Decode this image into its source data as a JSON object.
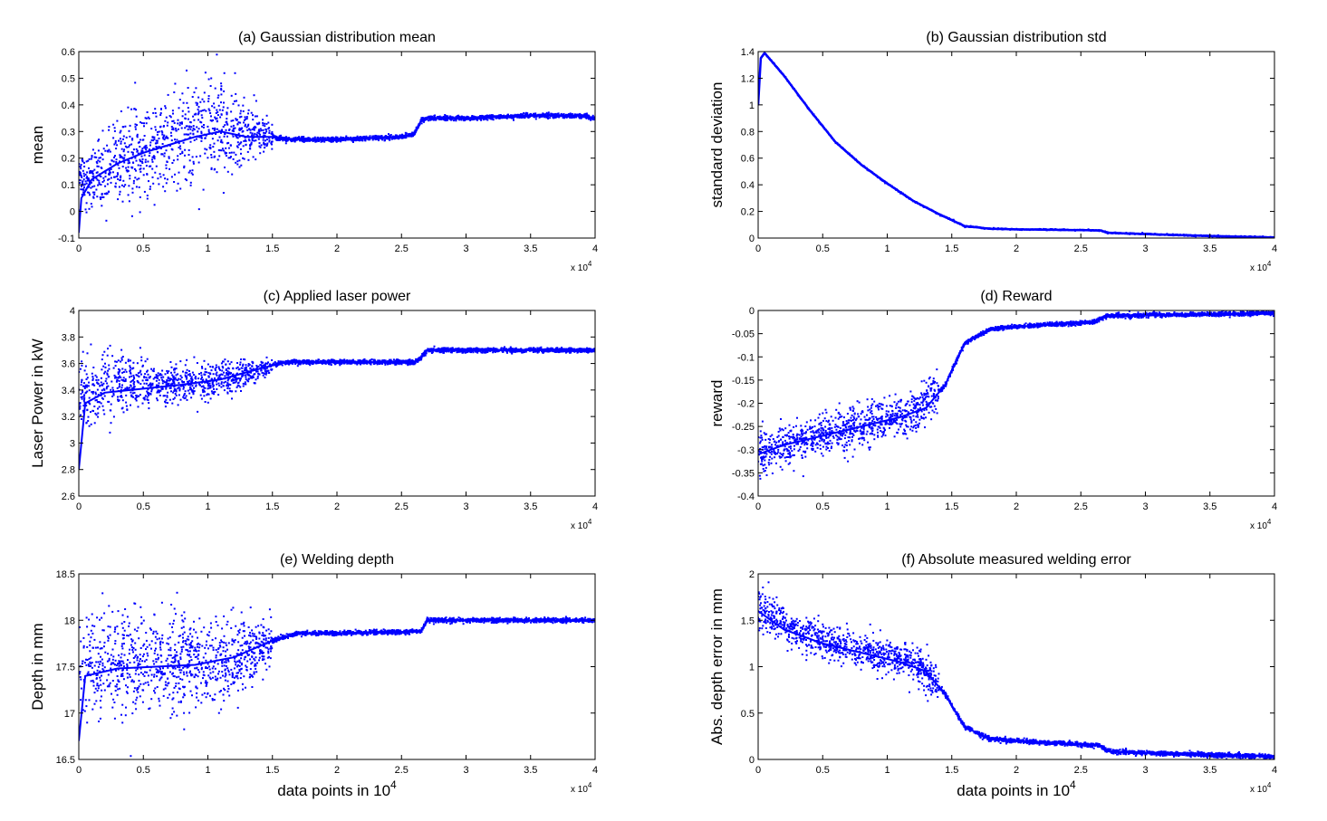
{
  "chart_data": [
    {
      "type": "scatter",
      "title": "(a) Gaussian distribution mean",
      "xlabel": "",
      "ylabel": "mean",
      "xlim": [
        0,
        4
      ],
      "ylim": [
        -0.1,
        0.6
      ],
      "x_ticks": [
        "0",
        "0.5",
        "1",
        "1.5",
        "2",
        "2.5",
        "3",
        "3.5",
        "4"
      ],
      "y_ticks": [
        "-0.1",
        "0",
        "0.1",
        "0.2",
        "0.3",
        "0.4",
        "0.5",
        "0.6"
      ],
      "x_multiplier": "x 10",
      "x_multiplier_exp": "4",
      "color": "#0000ff",
      "series": [
        {
          "x": [
            0,
            0.02,
            0.1,
            0.2,
            0.3,
            0.5,
            0.7,
            0.9,
            1.1,
            1.3,
            1.5,
            1.6,
            2.0,
            2.5,
            2.6,
            2.65,
            2.7,
            3.0,
            3.5,
            3.9,
            4.0
          ],
          "y": [
            -0.08,
            0.05,
            0.12,
            0.15,
            0.18,
            0.22,
            0.25,
            0.28,
            0.3,
            0.28,
            0.28,
            0.27,
            0.27,
            0.28,
            0.29,
            0.34,
            0.35,
            0.35,
            0.36,
            0.36,
            0.35
          ]
        },
        {
          "x": [
            0.1,
            0.3,
            0.5,
            0.7,
            0.9,
            1.1,
            1.3,
            1.5
          ],
          "y": [
            0.03,
            0.06,
            0.08,
            0.1,
            0.12,
            0.15,
            0.2,
            0.24
          ]
        },
        {
          "x": [
            0.1,
            0.3,
            0.5,
            0.7,
            0.9,
            1.1,
            1.3,
            1.5
          ],
          "y": [
            0.22,
            0.32,
            0.38,
            0.42,
            0.47,
            0.48,
            0.4,
            0.33
          ]
        }
      ]
    },
    {
      "type": "line",
      "title": "(b) Gaussian distribution std",
      "xlabel": "",
      "ylabel": "standard deviation",
      "xlim": [
        0,
        4
      ],
      "ylim": [
        0,
        1.4
      ],
      "x_ticks": [
        "0",
        "0.5",
        "1",
        "1.5",
        "2",
        "2.5",
        "3",
        "3.5",
        "4"
      ],
      "y_ticks": [
        "0",
        "0.2",
        "0.4",
        "0.6",
        "0.8",
        "1",
        "1.2",
        "1.4"
      ],
      "x_multiplier": "x 10",
      "x_multiplier_exp": "4",
      "color": "#0000ff",
      "series": [
        {
          "x": [
            0,
            0.02,
            0.05,
            0.2,
            0.4,
            0.6,
            0.8,
            1.0,
            1.2,
            1.4,
            1.6,
            1.8,
            2.0,
            2.5,
            2.65,
            2.7,
            3.0,
            3.5,
            4.0
          ],
          "y": [
            1.0,
            1.35,
            1.39,
            1.22,
            0.96,
            0.72,
            0.55,
            0.41,
            0.28,
            0.18,
            0.09,
            0.07,
            0.065,
            0.06,
            0.058,
            0.04,
            0.03,
            0.015,
            0.005
          ]
        }
      ]
    },
    {
      "type": "scatter",
      "title": "(c) Applied laser power",
      "xlabel": "",
      "ylabel": "Laser Power in kW",
      "xlim": [
        0,
        4
      ],
      "ylim": [
        2.6,
        4
      ],
      "x_ticks": [
        "0",
        "0.5",
        "1",
        "1.5",
        "2",
        "2.5",
        "3",
        "3.5",
        "4"
      ],
      "y_ticks": [
        "2.6",
        "2.8",
        "3",
        "3.2",
        "3.4",
        "3.6",
        "3.8",
        "4"
      ],
      "x_multiplier": "x 10",
      "x_multiplier_exp": "4",
      "color": "#0000ff",
      "series": [
        {
          "x": [
            0,
            0.05,
            0.2,
            0.5,
            0.8,
            1.1,
            1.4,
            1.6,
            2.0,
            2.6,
            2.65,
            2.7,
            3.0,
            3.5,
            4.0
          ],
          "y": [
            2.8,
            3.3,
            3.38,
            3.41,
            3.44,
            3.48,
            3.56,
            3.61,
            3.61,
            3.61,
            3.64,
            3.7,
            3.7,
            3.7,
            3.7
          ]
        },
        {
          "x": [
            0.05,
            0.3,
            0.6,
            0.9,
            1.2,
            1.5
          ],
          "y": [
            3.1,
            3.25,
            3.3,
            3.34,
            3.4,
            3.52
          ]
        },
        {
          "x": [
            0.05,
            0.3,
            0.6,
            0.9,
            1.2,
            1.5
          ],
          "y": [
            3.6,
            3.65,
            3.58,
            3.58,
            3.6,
            3.64
          ]
        }
      ]
    },
    {
      "type": "scatter",
      "title": "(d) Reward",
      "xlabel": "",
      "ylabel": "reward",
      "xlim": [
        0,
        4
      ],
      "ylim": [
        -0.4,
        0
      ],
      "x_ticks": [
        "0",
        "0.5",
        "1",
        "1.5",
        "2",
        "2.5",
        "3",
        "3.5",
        "4"
      ],
      "y_ticks": [
        "-0.4",
        "-0.35",
        "-0.3",
        "-0.25",
        "-0.2",
        "-0.15",
        "-0.1",
        "-0.05",
        "0"
      ],
      "x_multiplier": "x 10",
      "x_multiplier_exp": "4",
      "color": "#0000ff",
      "series": [
        {
          "x": [
            0,
            0.2,
            0.5,
            0.8,
            1.1,
            1.3,
            1.45,
            1.6,
            1.8,
            2.0,
            2.6,
            2.7,
            3.0,
            3.5,
            4.0
          ],
          "y": [
            -0.31,
            -0.29,
            -0.27,
            -0.25,
            -0.23,
            -0.21,
            -0.16,
            -0.07,
            -0.04,
            -0.035,
            -0.025,
            -0.012,
            -0.01,
            -0.008,
            -0.006
          ]
        },
        {
          "x": [
            0,
            0.3,
            0.6,
            0.9,
            1.2,
            1.4
          ],
          "y": [
            -0.35,
            -0.32,
            -0.3,
            -0.28,
            -0.26,
            -0.23
          ]
        },
        {
          "x": [
            0,
            0.3,
            0.6,
            0.9,
            1.2,
            1.4
          ],
          "y": [
            -0.27,
            -0.24,
            -0.22,
            -0.2,
            -0.18,
            -0.12
          ]
        }
      ]
    },
    {
      "type": "scatter",
      "title": "(e) Welding depth",
      "xlabel": "data points in 10",
      "xlabel_exp": "4",
      "ylabel": "Depth in mm",
      "xlim": [
        0,
        4
      ],
      "ylim": [
        16.5,
        18.5
      ],
      "x_ticks": [
        "0",
        "0.5",
        "1",
        "1.5",
        "2",
        "2.5",
        "3",
        "3.5",
        "4"
      ],
      "y_ticks": [
        "16.5",
        "17",
        "17.5",
        "18",
        "18.5"
      ],
      "x_multiplier": "x 10",
      "x_multiplier_exp": "4",
      "color": "#0000ff",
      "series": [
        {
          "x": [
            0,
            0.05,
            0.3,
            0.6,
            0.9,
            1.2,
            1.5,
            1.7,
            2.0,
            2.65,
            2.7,
            3.0,
            3.5,
            4.0
          ],
          "y": [
            16.7,
            17.4,
            17.48,
            17.5,
            17.52,
            17.6,
            17.78,
            17.86,
            17.86,
            17.88,
            18.0,
            18.0,
            18.0,
            18.0
          ]
        },
        {
          "x": [
            0.05,
            0.3,
            0.6,
            0.9,
            1.2,
            1.5
          ],
          "y": [
            17.0,
            17.05,
            17.05,
            17.1,
            17.25,
            17.6
          ]
        },
        {
          "x": [
            0.05,
            0.3,
            0.6,
            0.9,
            1.2,
            1.5
          ],
          "y": [
            18.0,
            18.05,
            18.0,
            17.95,
            17.95,
            17.95
          ]
        }
      ]
    },
    {
      "type": "scatter",
      "title": "(f) Absolute measured welding error",
      "xlabel": "data points in 10",
      "xlabel_exp": "4",
      "ylabel": "Abs. depth error in mm",
      "xlim": [
        0,
        4
      ],
      "ylim": [
        0,
        2
      ],
      "x_ticks": [
        "0",
        "0.5",
        "1",
        "1.5",
        "2",
        "2.5",
        "3",
        "3.5",
        "4"
      ],
      "y_ticks": [
        "0",
        "0.5",
        "1",
        "1.5",
        "2"
      ],
      "x_multiplier": "x 10",
      "x_multiplier_exp": "4",
      "color": "#0000ff",
      "series": [
        {
          "x": [
            0,
            0.2,
            0.5,
            0.8,
            1.1,
            1.3,
            1.45,
            1.6,
            1.8,
            2.0,
            2.65,
            2.7,
            3.0,
            3.5,
            4.0
          ],
          "y": [
            1.6,
            1.4,
            1.25,
            1.15,
            1.05,
            0.95,
            0.7,
            0.35,
            0.22,
            0.2,
            0.15,
            0.09,
            0.07,
            0.05,
            0.03
          ]
        },
        {
          "x": [
            0,
            0.3,
            0.6,
            0.9,
            1.2,
            1.4
          ],
          "y": [
            1.4,
            1.2,
            1.08,
            0.98,
            0.88,
            0.65
          ]
        },
        {
          "x": [
            0,
            0.3,
            0.6,
            0.9,
            1.2,
            1.4
          ],
          "y": [
            1.85,
            1.55,
            1.4,
            1.3,
            1.2,
            1.0
          ]
        }
      ]
    }
  ]
}
